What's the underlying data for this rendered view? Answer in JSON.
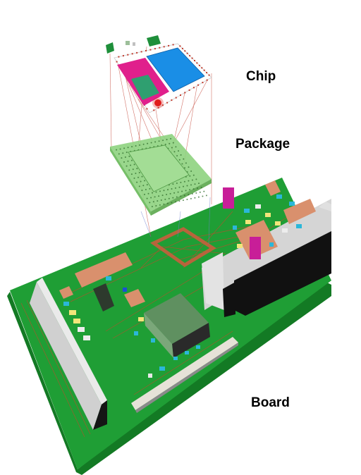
{
  "labels": {
    "chip": "Chip",
    "package": "Package",
    "board": "Board"
  },
  "colors": {
    "board_green": "#1f9e35",
    "board_edge": "#137a24",
    "package_green": "#8ed37f",
    "chip_magenta": "#e0208c",
    "chip_blue": "#1a8ee6",
    "connector_gray": "#d8d8d8",
    "connector_black": "#111111",
    "pad_copper": "#d9906d",
    "component_cyan": "#2bb7d9",
    "component_yellow": "#f2e57a",
    "trace_red": "#c0392b",
    "highlight_red": "#e01e1e"
  }
}
